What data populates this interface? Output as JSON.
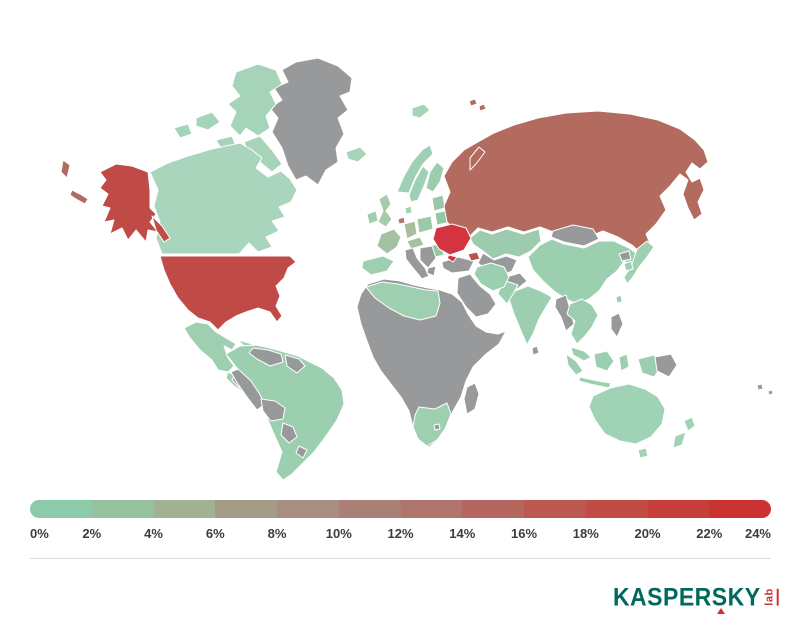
{
  "map": {
    "ocean_color": "#ffffff",
    "border_color": "#ffffff",
    "no_data_color": "#98999b",
    "region_colors": {
      "greenland": "#98999b",
      "arctic-islands": "#a5d4b8",
      "canada": "#a8d5bb",
      "alaska": "#c04a46",
      "alaska-panhandle": "#c04a46",
      "chukotka-sliver": "#b26b5e",
      "aleutian-islands": "#b26b5e",
      "usa": "#c04a46",
      "mexico": "#9fcfb1",
      "central-america": "#9fcfb1",
      "central-america-gray": "#98999b",
      "cuba": "#9fcfb1",
      "hispaniola": "#98999b",
      "south-america": "#9cceb0",
      "venezuela": "#98999b",
      "guyanas": "#98999b",
      "peru": "#98999b",
      "bolivia": "#98999b",
      "paraguay": "#98999b",
      "uruguay": "#98999b",
      "africa": "#98999b",
      "algeria-libya": "#9fcfb1",
      "south-africa": "#9fcfb1",
      "lesotho": "#98999b",
      "madagascar": "#98999b",
      "iceland": "#a5d4b8",
      "ireland": "#9fcfb1",
      "uk": "#a6cbab",
      "norway": "#a0d0b3",
      "sweden": "#a0d0b3",
      "finland": "#9cccae",
      "denmark": "#a0d0b3",
      "baltics": "#99c9a8",
      "netherlands": "#ab7a6d",
      "germany": "#a9bda1",
      "france": "#a3c2a2",
      "alpine": "#a9bda1",
      "iberia": "#9fcfb1",
      "italy": "#98999b",
      "poland": "#9cc9a6",
      "belarus": "#93c8a4",
      "romania": "#97c8a4",
      "balkans": "#98999b",
      "greece": "#98999b",
      "turkey": "#98999b",
      "caucasus": "#b5564f",
      "ukraine": "#d43440",
      "crimea": "#d43440",
      "russia": "#b26b5e",
      "novaya-zemlya": "#b26b5e",
      "franz-josef": "#b26b5e",
      "svalbard": "#a5d4b8",
      "kazakhstan": "#9ccbad",
      "central-asia": "#98999b",
      "afghanistan": "#98999b",
      "mongolia": "#98999b",
      "china": "#9ccfb0",
      "india": "#9ccfb0",
      "pakistan": "#9ccfb0",
      "iran": "#9ccfb0",
      "mideast": "#98999b",
      "myanmar": "#98999b",
      "indochina": "#9ccfb0",
      "malaysia": "#9ccfb0",
      "sumatra": "#9ccfb0",
      "java": "#9ccfb0",
      "borneo": "#9ccfb0",
      "sulawesi": "#9ccfb0",
      "west-papua": "#9ccfb0",
      "png": "#98999b",
      "philippines": "#98999b",
      "japan": "#a0d0b3",
      "south-korea": "#9ccfb0",
      "north-korea": "#98999b",
      "taiwan": "#9ccfb0",
      "sri-lanka": "#98999b",
      "australia": "#a0d2b5",
      "tasmania": "#a0d2b5",
      "new-zealand": "#a0d2b5",
      "fiji": "#98999b"
    }
  },
  "chart_data": {
    "type": "heatmap",
    "title": "",
    "legend_position": "bottom",
    "scale_min": "0%",
    "scale_max": "24%",
    "tick_labels": [
      "0%",
      "2%",
      "4%",
      "6%",
      "8%",
      "10%",
      "12%",
      "14%",
      "16%",
      "18%",
      "20%",
      "22%",
      "24%"
    ],
    "series": [
      {
        "name": "Ukraine",
        "approx_value_pct": 24
      },
      {
        "name": "United States",
        "approx_value_pct": 20
      },
      {
        "name": "Russia",
        "approx_value_pct": 14
      },
      {
        "name": "Netherlands",
        "approx_value_pct": 11
      },
      {
        "name": "Caucasus country",
        "approx_value_pct": 17
      },
      {
        "name": "Germany",
        "approx_value_pct": 5
      },
      {
        "name": "France",
        "approx_value_pct": 4
      },
      {
        "name": "Canada, Mexico, South America (most), Western Europe, Scandinavia, China, India, Iran, Southeast Asia, Japan, Australia, New Zealand, Algeria-Libya, South Africa",
        "approx_value_pct": 1
      },
      {
        "name": "Gray countries (Greenland, most of Africa, Middle East, Central Asia, Mongolia, Turkey, Balkans, Italy, Peru, Bolivia, Venezuela, etc.)",
        "approx_value_pct": null
      }
    ]
  },
  "legend": {
    "tick_labels": [
      "0%",
      "2%",
      "4%",
      "6%",
      "8%",
      "10%",
      "12%",
      "14%",
      "16%",
      "18%",
      "20%",
      "22%",
      "24%"
    ],
    "segment_colors": [
      "#8dcaa9",
      "#96c19e",
      "#a1b292",
      "#a49c86",
      "#a78e80",
      "#aa8076",
      "#af746b",
      "#b5665e",
      "#bb5951",
      "#c14b45",
      "#c63e3a",
      "#cb3333"
    ],
    "label_color": "#3c3c3c"
  },
  "footer": {
    "brand": "KASPERSKY",
    "brand_sub": "lab",
    "brand_color": "#00685c",
    "accent_color": "#cf3038"
  }
}
